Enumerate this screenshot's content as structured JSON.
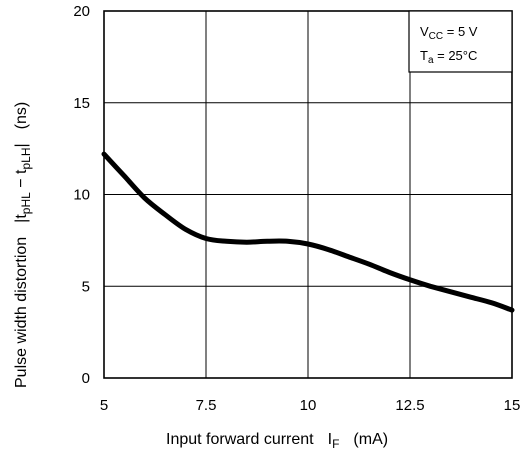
{
  "chart_data": {
    "type": "line",
    "title": "",
    "xlabel": {
      "main": "Input forward current",
      "symbol": "I",
      "symbol_sub": "F",
      "unit": "(mA)"
    },
    "ylabel": {
      "main": "Pulse width distortion",
      "symbol_open": "|t",
      "sub1": "pHL",
      "minus": " − t",
      "sub2": "pLH",
      "symbol_close": "|",
      "unit": "(ns)"
    },
    "xlim": [
      5,
      15
    ],
    "ylim": [
      0,
      20
    ],
    "x_ticks": [
      5,
      7.5,
      10,
      12.5,
      15
    ],
    "x_tick_labels": [
      "5",
      "7.5",
      "10",
      "12.5",
      "15"
    ],
    "y_ticks": [
      0,
      5,
      10,
      15,
      20
    ],
    "y_tick_labels": [
      "0",
      "5",
      "10",
      "15",
      "20"
    ],
    "grid": true,
    "legend": {
      "placement": "top-right",
      "line1": {
        "main": "V",
        "sub": "CC",
        "rest": " = 5 V"
      },
      "line2": {
        "main": "T",
        "sub": "a",
        "rest": " = 25°C"
      }
    },
    "series": [
      {
        "x": [
          5.0,
          5.5,
          6.0,
          6.5,
          7.0,
          7.5,
          8.0,
          8.5,
          9.0,
          9.5,
          10.0,
          10.5,
          11.0,
          11.5,
          12.0,
          12.5,
          13.0,
          13.5,
          14.0,
          14.5,
          15.0
        ],
        "y": [
          12.2,
          11.0,
          9.8,
          8.9,
          8.1,
          7.6,
          7.45,
          7.4,
          7.45,
          7.45,
          7.3,
          7.0,
          6.6,
          6.2,
          5.75,
          5.35,
          5.0,
          4.7,
          4.4,
          4.1,
          3.7
        ]
      }
    ]
  }
}
